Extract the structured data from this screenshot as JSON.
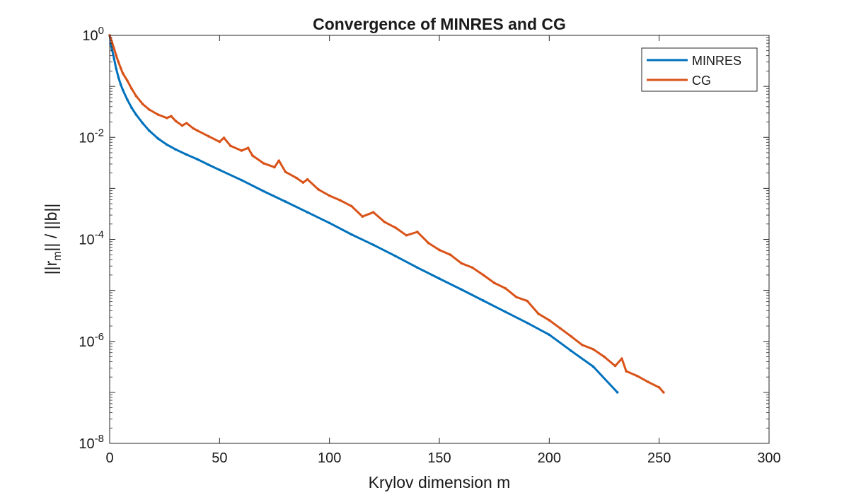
{
  "chart_data": {
    "type": "line",
    "title": "Convergence of MINRES and CG",
    "xlabel": "Krylov dimension m",
    "ylabel": {
      "base": "||r",
      "sub": "m",
      "rest": "|| / ||b||"
    },
    "xlim": [
      0,
      300
    ],
    "ylim": [
      1e-08,
      1
    ],
    "yscale": "log",
    "grid": false,
    "legend_position": "top-right",
    "x_ticks": [
      "0",
      "50",
      "100",
      "150",
      "200",
      "250",
      "300"
    ],
    "y_ticks": [
      {
        "base": "10",
        "exp": "0"
      },
      {
        "base": "10",
        "exp": "-2"
      },
      {
        "base": "10",
        "exp": "-4"
      },
      {
        "base": "10",
        "exp": "-6"
      },
      {
        "base": "10",
        "exp": "-8"
      }
    ],
    "series": [
      {
        "name": "MINRES",
        "color": "#0072BD",
        "x": [
          0,
          1,
          2,
          3,
          4,
          5,
          6,
          8,
          10,
          12,
          15,
          18,
          22,
          26,
          30,
          35,
          40,
          45,
          50,
          60,
          70,
          80,
          90,
          100,
          110,
          120,
          130,
          140,
          150,
          160,
          170,
          180,
          190,
          200,
          210,
          220,
          231
        ],
        "y": [
          1,
          0.55,
          0.35,
          0.22,
          0.15,
          0.11,
          0.085,
          0.055,
          0.038,
          0.028,
          0.019,
          0.0135,
          0.0095,
          0.0072,
          0.0058,
          0.0046,
          0.0037,
          0.0029,
          0.0023,
          0.00145,
          0.00088,
          0.00055,
          0.00034,
          0.00021,
          0.000125,
          7.8e-05,
          4.7e-05,
          2.8e-05,
          1.7e-05,
          1.04e-05,
          6.3e-06,
          3.8e-06,
          2.3e-06,
          1.35e-06,
          6.5e-07,
          3.2e-07,
          1e-07
        ]
      },
      {
        "name": "CG",
        "color": "#D95319",
        "x": [
          0,
          1,
          2,
          3,
          4,
          5,
          6,
          8,
          10,
          12,
          15,
          18,
          22,
          26,
          28,
          30,
          33,
          35,
          38,
          40,
          45,
          50,
          52,
          55,
          60,
          63,
          65,
          70,
          75,
          77,
          80,
          85,
          88,
          90,
          95,
          100,
          105,
          110,
          115,
          120,
          125,
          130,
          135,
          140,
          145,
          150,
          155,
          160,
          165,
          170,
          175,
          180,
          185,
          190,
          195,
          200,
          205,
          210,
          215,
          220,
          225,
          230,
          233,
          235,
          240,
          245,
          250,
          252
        ],
        "y": [
          1,
          0.75,
          0.55,
          0.4,
          0.3,
          0.23,
          0.18,
          0.13,
          0.09,
          0.065,
          0.045,
          0.035,
          0.028,
          0.024,
          0.026,
          0.021,
          0.017,
          0.019,
          0.015,
          0.0135,
          0.0105,
          0.0082,
          0.0098,
          0.0068,
          0.0055,
          0.0062,
          0.0044,
          0.0031,
          0.0026,
          0.0035,
          0.0021,
          0.0016,
          0.0013,
          0.0015,
          0.00095,
          0.00072,
          0.00058,
          0.00045,
          0.00028,
          0.00034,
          0.00022,
          0.00017,
          0.00012,
          0.00014,
          8.5e-05,
          6.2e-05,
          5e-05,
          3.4e-05,
          2.8e-05,
          2e-05,
          1.4e-05,
          1.1e-05,
          7.4e-06,
          6.2e-06,
          3.5e-06,
          2.6e-06,
          1.8e-06,
          1.25e-06,
          8.5e-07,
          7e-07,
          5e-07,
          3.3e-07,
          4.6e-07,
          2.6e-07,
          2.1e-07,
          1.6e-07,
          1.25e-07,
          1e-07
        ]
      }
    ]
  }
}
